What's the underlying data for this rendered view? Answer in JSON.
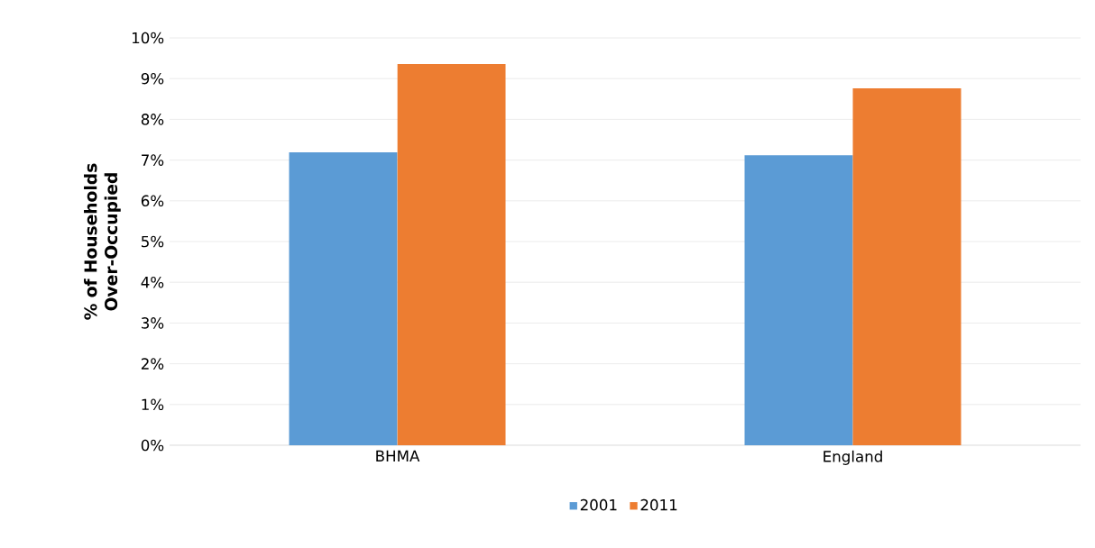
{
  "chart_data": {
    "type": "bar",
    "ylabel": "% of Households Over-Occupied",
    "categories": [
      "BHMA",
      "England"
    ],
    "series": [
      {
        "name": "2001",
        "color": "#5b9bd5",
        "values": [
          7.19,
          7.12
        ]
      },
      {
        "name": "2011",
        "color": "#ed7d31",
        "values": [
          9.36,
          8.76
        ]
      }
    ],
    "ylim": [
      0,
      10
    ],
    "yticks": [
      {
        "value": 0,
        "label": "0%"
      },
      {
        "value": 1,
        "label": "1%"
      },
      {
        "value": 2,
        "label": "2%"
      },
      {
        "value": 3,
        "label": "3%"
      },
      {
        "value": 4,
        "label": "4%"
      },
      {
        "value": 5,
        "label": "5%"
      },
      {
        "value": 6,
        "label": "6%"
      },
      {
        "value": 7,
        "label": "7%"
      },
      {
        "value": 8,
        "label": "8%"
      },
      {
        "value": 9,
        "label": "9%"
      },
      {
        "value": 10,
        "label": "10%"
      }
    ],
    "grid": "y",
    "legend": "bottom"
  }
}
